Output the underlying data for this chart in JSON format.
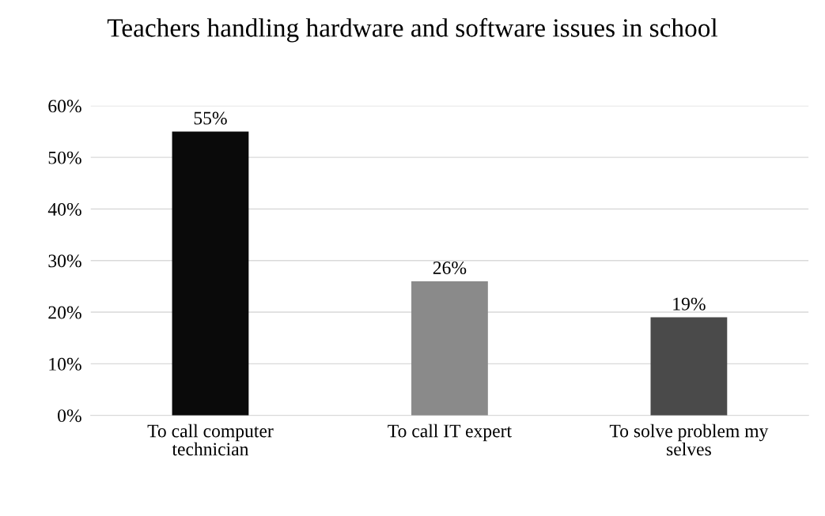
{
  "chart_data": {
    "type": "bar",
    "title": "Teachers handling hardware and software issues in school",
    "categories": [
      "To call computer technician",
      "To call IT expert",
      "To solve problem my selves"
    ],
    "values": [
      55,
      26,
      19
    ],
    "colors": [
      "#0a0a0a",
      "#8a8a8a",
      "#4a4a4a"
    ],
    "value_labels": [
      "55%",
      "26%",
      "19%"
    ],
    "ylim": [
      0,
      60
    ],
    "yticks": [
      {
        "value": 0,
        "label": "0%"
      },
      {
        "value": 10,
        "label": "10%"
      },
      {
        "value": 20,
        "label": "20%"
      },
      {
        "value": 30,
        "label": "30%"
      },
      {
        "value": 40,
        "label": "40%"
      },
      {
        "value": 50,
        "label": "50%"
      },
      {
        "value": 60,
        "label": "60%"
      }
    ],
    "grid": "y"
  }
}
